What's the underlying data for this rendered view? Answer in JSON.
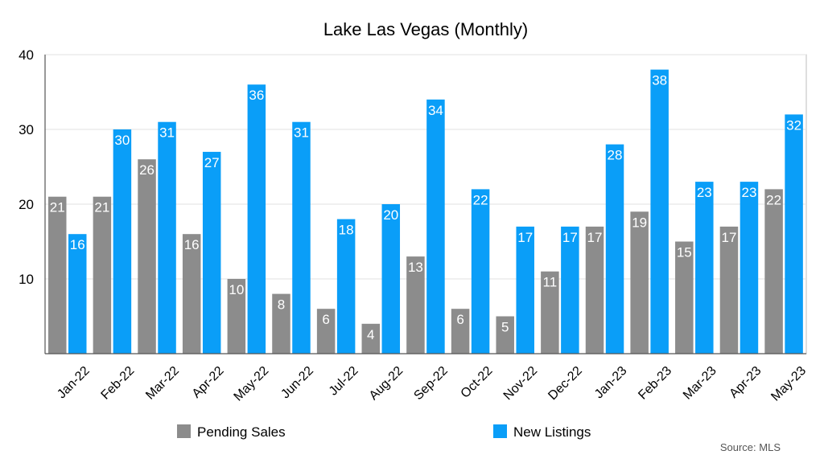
{
  "chart_data": {
    "type": "bar",
    "title": "Lake Las Vegas (Monthly)",
    "xlabel": "",
    "ylabel": "",
    "ylim": [
      0,
      40
    ],
    "yticks": [
      10,
      20,
      30,
      40
    ],
    "grid": true,
    "legend_position": "bottom",
    "categories": [
      "Jan-22",
      "Feb-22",
      "Mar-22",
      "Apr-22",
      "May-22",
      "Jun-22",
      "Jul-22",
      "Aug-22",
      "Sep-22",
      "Oct-22",
      "Nov-22",
      "Dec-22",
      "Jan-23",
      "Feb-23",
      "Mar-23",
      "Apr-23",
      "May-23"
    ],
    "series": [
      {
        "name": "Pending Sales",
        "color": "#8c8c8c",
        "values": [
          21,
          21,
          26,
          16,
          10,
          8,
          6,
          4,
          13,
          6,
          5,
          11,
          17,
          19,
          15,
          17,
          22
        ]
      },
      {
        "name": "New Listings",
        "color": "#0a9ef8",
        "values": [
          16,
          30,
          31,
          27,
          36,
          31,
          18,
          20,
          34,
          22,
          17,
          17,
          28,
          38,
          23,
          23,
          32
        ]
      }
    ],
    "source": "Source: MLS"
  }
}
